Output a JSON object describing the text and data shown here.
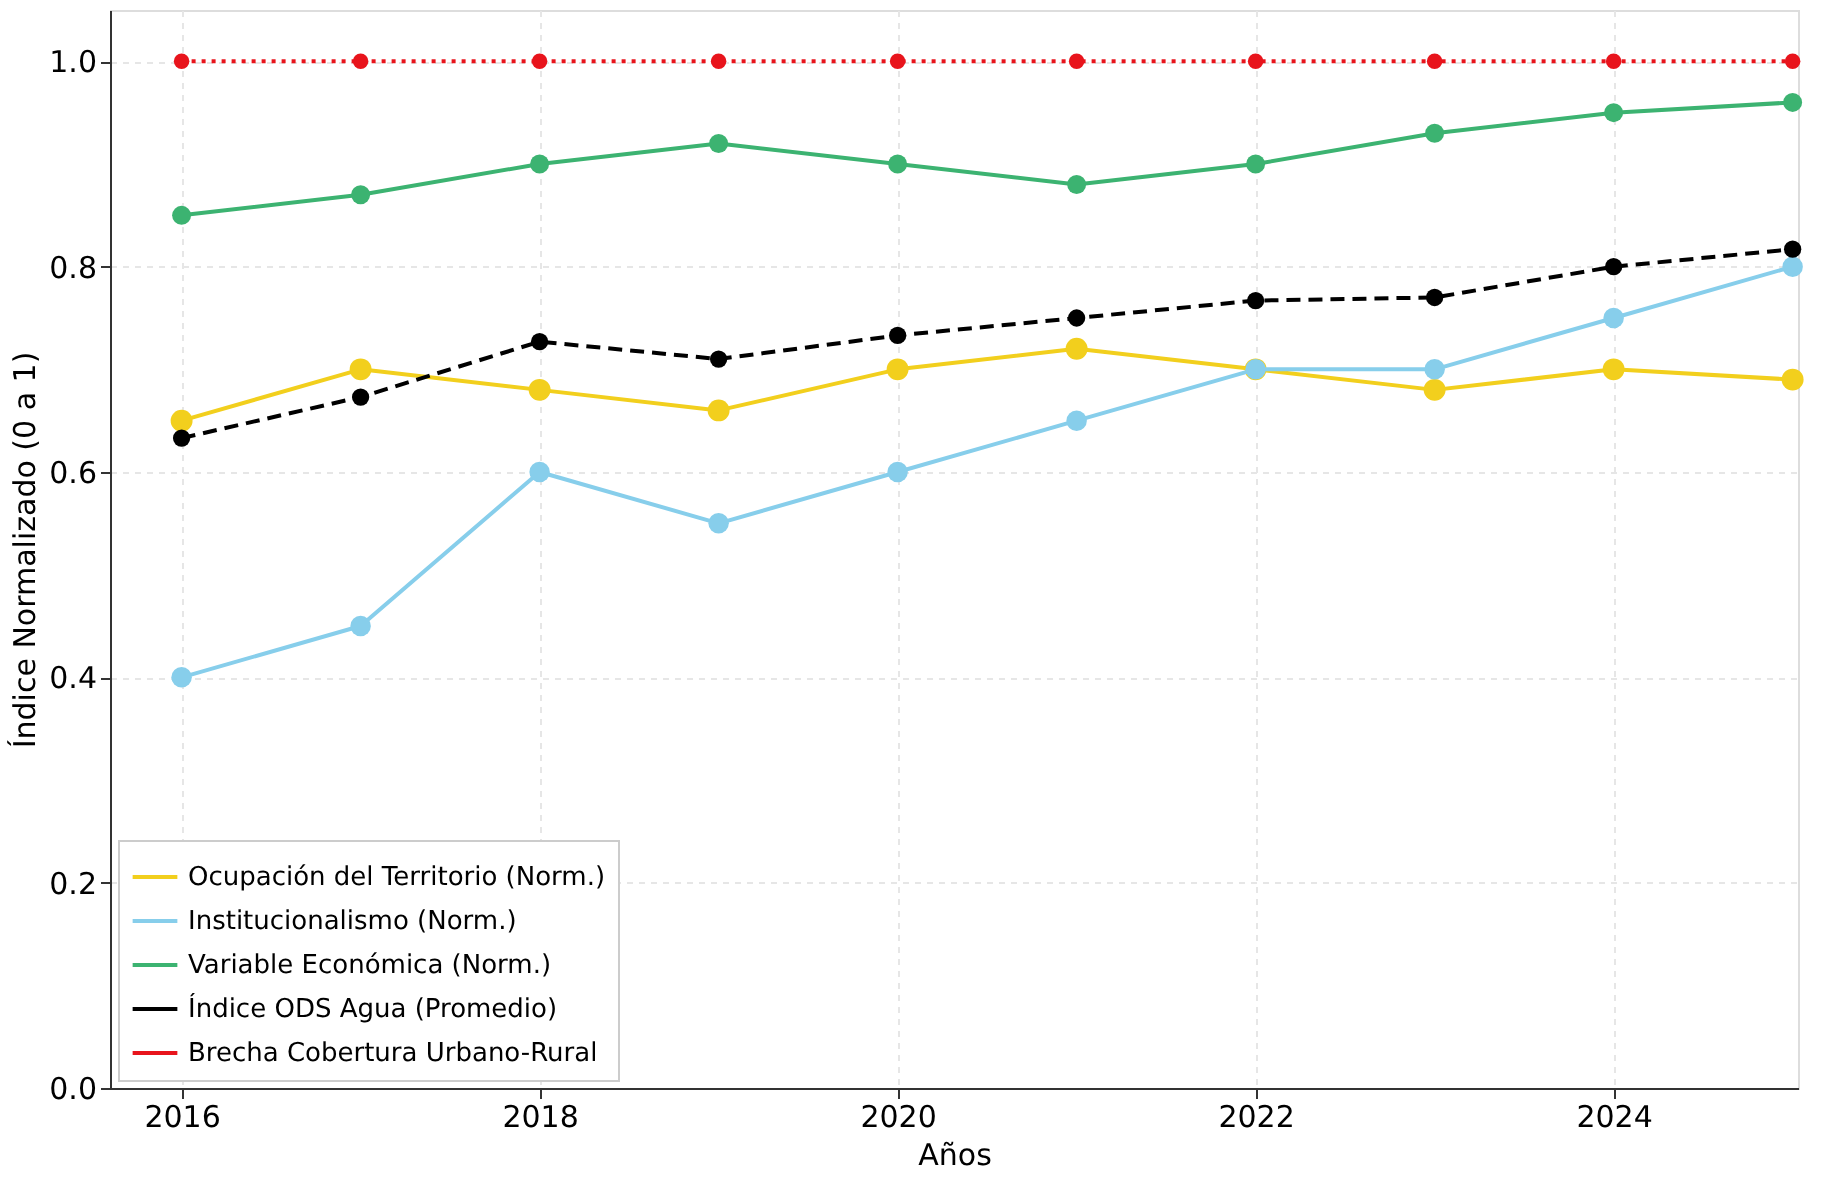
{
  "chart_data": {
    "type": "line",
    "xlabel": "Años",
    "ylabel": "Índice Normalizado (0 a 1)",
    "x": [
      2016,
      2017,
      2018,
      2019,
      2020,
      2021,
      2022,
      2023,
      2024,
      2025
    ],
    "xlim": [
      2015.6,
      2025.03
    ],
    "xticks": [
      2016,
      2018,
      2020,
      2022,
      2024
    ],
    "ylim": [
      0,
      1.05
    ],
    "yticks": [
      {
        "value": 0,
        "label": "0.0"
      },
      0.2,
      0.4,
      0.6,
      0.8,
      {
        "value": 1,
        "label": "1.0"
      }
    ],
    "grid": true,
    "legend": "bottom left",
    "marker": "circle",
    "series": [
      {
        "name": "Ocupación del Territorio (Norm.)",
        "color": "#f2cf1d",
        "line_style": "solid",
        "values": [
          0.65,
          0.7,
          0.68,
          0.66,
          0.7,
          0.72,
          0.7,
          0.68,
          0.7,
          0.69
        ]
      },
      {
        "name": "Institucionalismo (Norm.)",
        "color": "#87ceeb",
        "line_style": "solid",
        "values": [
          0.4,
          0.45,
          0.6,
          0.55,
          0.6,
          0.65,
          0.7,
          0.7,
          0.75,
          0.8
        ]
      },
      {
        "name": "Variable Económica (Norm.)",
        "color": "#3cb371",
        "line_style": "solid",
        "values": [
          0.85,
          0.87,
          0.9,
          0.92,
          0.9,
          0.88,
          0.9,
          0.93,
          0.95,
          0.96
        ]
      },
      {
        "name": "Índice ODS Agua (Promedio)",
        "color": "#000000",
        "line_style": "dashed",
        "values": [
          0.633,
          0.673,
          0.727,
          0.71,
          0.733,
          0.75,
          0.767,
          0.77,
          0.8,
          0.817
        ]
      },
      {
        "name": "Brecha Cobertura Urbano-Rural",
        "color": "#e8141c",
        "line_style": "dotted",
        "values": [
          1.0,
          1.0,
          1.0,
          1.0,
          1.0,
          1.0,
          1.0,
          1.0,
          1.0,
          1.0
        ]
      }
    ]
  }
}
